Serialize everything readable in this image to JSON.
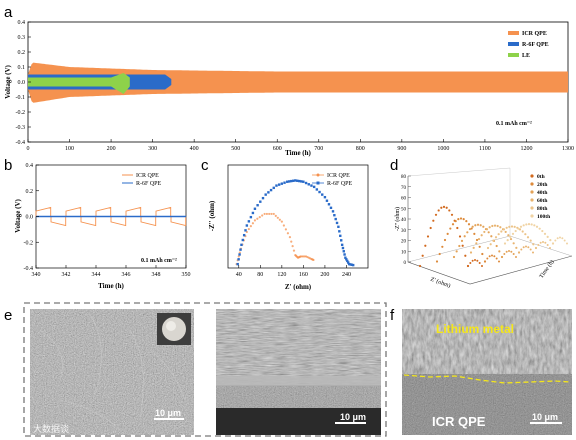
{
  "panels": {
    "a": "a",
    "b": "b",
    "c": "c",
    "d": "d",
    "e": "e",
    "f": "f"
  },
  "colors": {
    "icr": "#f5924f",
    "r6f": "#2a6bc9",
    "le": "#8ed24a"
  },
  "chart_data": [
    {
      "panel": "a",
      "type": "line",
      "xlabel": "Time (h)",
      "ylabel": "Voltage (V)",
      "xlim": [
        0,
        1300
      ],
      "ylim": [
        -0.4,
        0.4
      ],
      "xticks": [
        0,
        100,
        200,
        300,
        400,
        500,
        600,
        700,
        800,
        900,
        1000,
        1100,
        1200,
        1300
      ],
      "yticks": [
        0.4,
        0.3,
        0.2,
        0.1,
        0.0,
        -0.1,
        -0.2,
        -0.3,
        -0.4
      ],
      "yticklabels": [
        "0.4",
        "0.3",
        "0.2",
        "0.1",
        "0.0",
        "-0.1",
        "-0.2",
        "-0.3",
        "-0.4"
      ],
      "legend": [
        "ICR QPE",
        "R-6F QPE",
        "LE"
      ],
      "legend_position": "top-right",
      "annotation": "0.1 mAh cm⁻²",
      "series": [
        {
          "name": "ICR QPE",
          "x": [
            0,
            10,
            100,
            300,
            600,
            1300
          ],
          "y_max": [
            0.05,
            0.13,
            0.1,
            0.08,
            0.07,
            0.07
          ],
          "y_min": [
            -0.05,
            -0.14,
            -0.1,
            -0.08,
            -0.07,
            -0.07
          ]
        },
        {
          "name": "R-6F QPE",
          "x": [
            0,
            100,
            200,
            330,
            345
          ],
          "y_max": [
            0.05,
            0.05,
            0.05,
            0.05,
            0.02
          ],
          "y_min": [
            -0.05,
            -0.05,
            -0.05,
            -0.05,
            -0.02
          ]
        },
        {
          "name": "LE",
          "x": [
            0,
            100,
            200,
            230,
            245
          ],
          "y_max": [
            0.03,
            0.03,
            0.03,
            0.06,
            0.03
          ],
          "y_min": [
            -0.03,
            -0.03,
            -0.03,
            -0.08,
            -0.03
          ]
        }
      ]
    },
    {
      "panel": "b",
      "type": "line",
      "xlabel": "Time (h)",
      "ylabel": "Voltage (V)",
      "xlim": [
        340,
        350
      ],
      "ylim": [
        -0.4,
        0.4
      ],
      "xticks": [
        340,
        342,
        344,
        346,
        348,
        350
      ],
      "yticks": [
        0.4,
        0.2,
        0.0,
        -0.2,
        -0.4
      ],
      "yticklabels": [
        "0.4",
        "0.2",
        "0.0",
        "-0.2",
        "-0.4"
      ],
      "legend": [
        "ICR QPE",
        "R-6F QPE"
      ],
      "legend_position": "top-right",
      "annotation": "0.1 mAh cm⁻²",
      "series": [
        {
          "name": "ICR QPE",
          "x": [
            340,
            341,
            342,
            343,
            344,
            345,
            346,
            347,
            348,
            349,
            350
          ],
          "y": [
            0.07,
            -0.07,
            0.07,
            -0.07,
            0.07,
            -0.07,
            0.07,
            -0.07,
            0.07,
            -0.07,
            0.07
          ]
        },
        {
          "name": "R-6F QPE",
          "x": [
            340,
            350
          ],
          "y": [
            0.0,
            0.0
          ]
        }
      ]
    },
    {
      "panel": "c",
      "type": "scatter",
      "xlabel": "Z' (ohm)",
      "ylabel": "-Z'' (ohm)",
      "xlim": [
        20,
        280
      ],
      "ylim": [
        0,
        80
      ],
      "xticks": [
        40,
        80,
        120,
        160,
        200,
        240
      ],
      "legend": [
        "ICR QPE",
        "R-6F QPE"
      ],
      "legend_position": "top-right",
      "series": [
        {
          "name": "ICR QPE",
          "x": [
            36,
            44,
            55,
            70,
            88,
            105,
            120,
            135,
            145,
            150,
            155,
            165,
            175,
            180
          ],
          "y": [
            3,
            15,
            28,
            37,
            42,
            42,
            36,
            24,
            10,
            8,
            9,
            9,
            7,
            6
          ]
        },
        {
          "name": "R-6F QPE",
          "x": [
            38,
            45,
            55,
            70,
            90,
            110,
            130,
            145,
            160,
            180,
            200,
            215,
            225,
            232,
            238,
            245,
            255
          ],
          "y": [
            3,
            18,
            33,
            46,
            57,
            64,
            67,
            68,
            67,
            63,
            55,
            44,
            32,
            18,
            8,
            3,
            2
          ]
        }
      ]
    },
    {
      "panel": "d",
      "type": "scatter",
      "xlabel": "Z' (ohm)",
      "ylabel": "-Z'' (ohm)",
      "zlabel": "Time (h)",
      "ylim": [
        0,
        80
      ],
      "yticks": [
        0,
        10,
        20,
        30,
        40,
        50,
        60,
        70,
        80
      ],
      "legend": [
        "0th",
        "20th",
        "40th",
        "60th",
        "80th",
        "100th"
      ],
      "legend_position": "top-right",
      "series": [
        {
          "name": "0th",
          "peak": 55
        },
        {
          "name": "20th",
          "peak": 40
        },
        {
          "name": "40th",
          "peak": 30
        },
        {
          "name": "60th",
          "peak": 25
        },
        {
          "name": "80th",
          "peak": 20
        },
        {
          "name": "100th",
          "peak": 18
        }
      ]
    }
  ],
  "images": {
    "e_left_scale": "10 μm",
    "e_right_scale": "10 μm",
    "f_scale": "10 μm",
    "f_top_label": "Lithium metal",
    "f_bottom_label": "ICR QPE",
    "watermark": "大数据谈"
  }
}
